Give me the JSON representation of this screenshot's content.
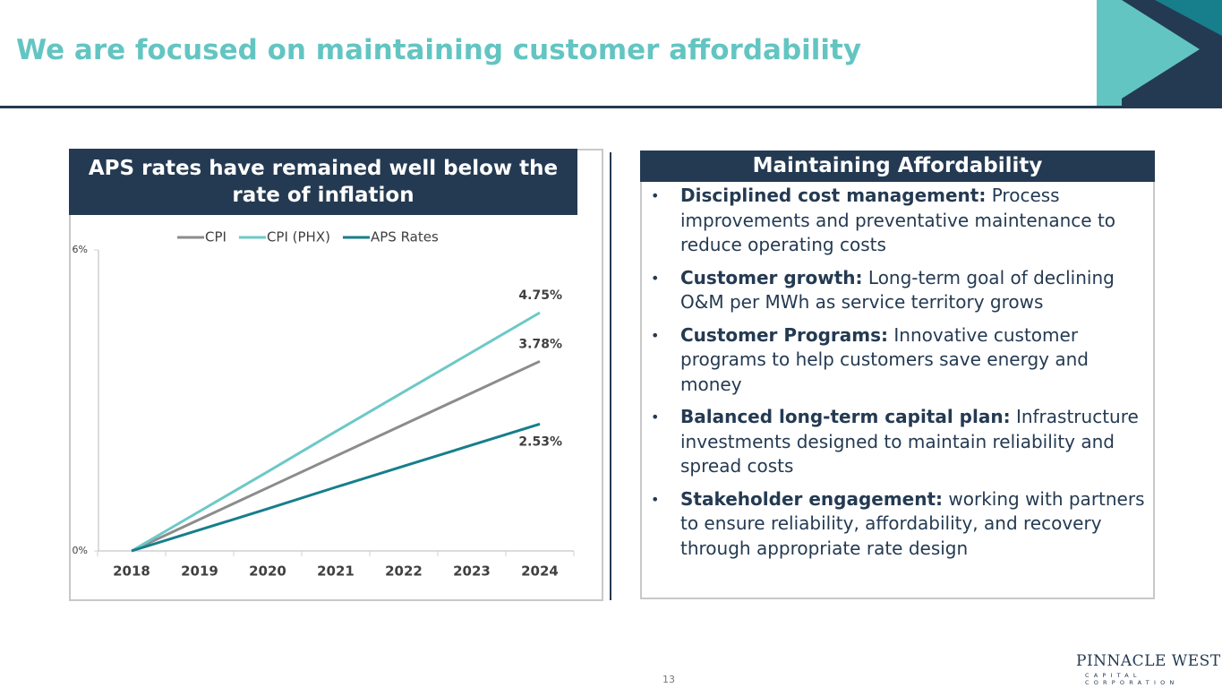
{
  "title": "We are focused on maintaining customer affordability",
  "left_header": "APS rates have remained well below the rate of inflation",
  "right_header": "Maintaining Affordability",
  "bullets": [
    {
      "bold": "Disciplined cost management:",
      "text": "Process improvements and preventative maintenance to reduce operating costs"
    },
    {
      "bold": "Customer growth:",
      "text": "Long-term goal of declining O&M per MWh as service territory grows"
    },
    {
      "bold": "Customer Programs:",
      "text": "Innovative customer programs to help customers save energy and money"
    },
    {
      "bold": "Balanced long-term capital plan:",
      "text": "Infrastructure investments designed to maintain reliability and spread costs"
    },
    {
      "bold": "Stakeholder engagement:",
      "text": "working with partners to ensure reliability, affordability, and recovery through appropriate rate design"
    }
  ],
  "page_number": "13",
  "logo": {
    "name": "PINNACLE WEST",
    "tagline": "CAPITAL CORPORATION"
  },
  "chart_data": {
    "type": "line",
    "categories": [
      "2018",
      "2019",
      "2020",
      "2021",
      "2022",
      "2023",
      "2024"
    ],
    "series": [
      {
        "name": "CPI",
        "color": "#8c8c8c",
        "values": [
          0,
          0.63,
          1.26,
          1.89,
          2.52,
          3.15,
          3.78
        ],
        "value_labels": [
          null,
          null,
          null,
          null,
          null,
          null,
          "3.78%"
        ]
      },
      {
        "name": "CPI (PHX)",
        "color": "#6cc9c6",
        "values": [
          0,
          0.79,
          1.58,
          2.38,
          3.17,
          3.96,
          4.75
        ],
        "value_labels": [
          null,
          null,
          null,
          null,
          null,
          null,
          "4.75%"
        ]
      },
      {
        "name": "APS Rates",
        "color": "#177e8c",
        "values": [
          0,
          0.42,
          0.84,
          1.27,
          1.69,
          2.11,
          2.53
        ],
        "value_labels": [
          null,
          null,
          null,
          null,
          null,
          null,
          "2.53%"
        ]
      }
    ],
    "ylim": [
      0,
      6
    ],
    "yticks": [
      {
        "value": 0,
        "label": "0%"
      },
      {
        "value": 6,
        "label": "6%"
      }
    ],
    "legend": "top"
  }
}
